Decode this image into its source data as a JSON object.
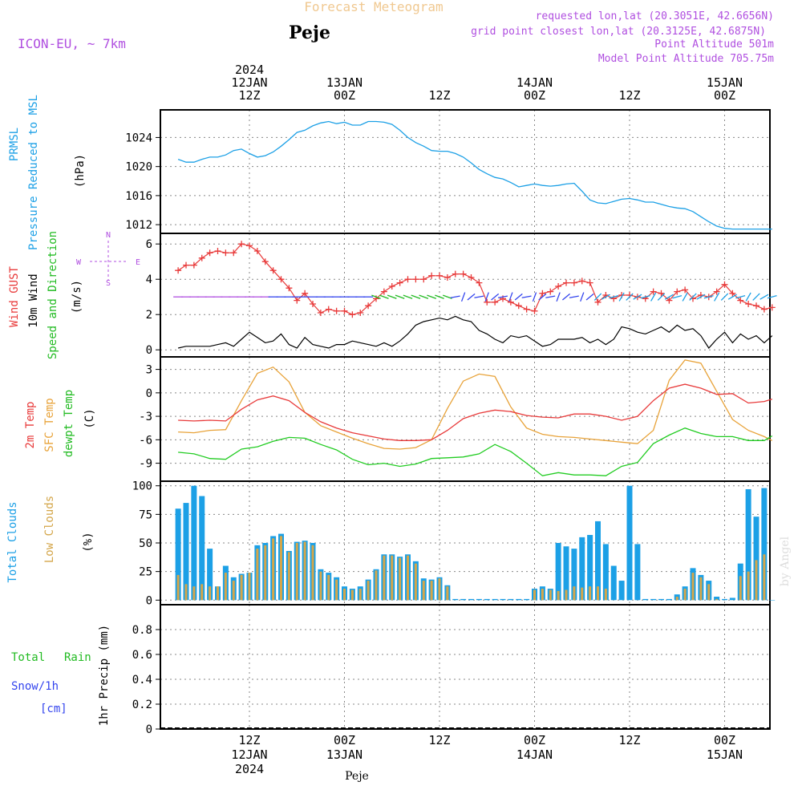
{
  "header": {
    "title": "Forecast Meteogram",
    "location": "Peje",
    "model": "ICON-EU, ~ 7km",
    "requested": "requested lon,lat (20.3051E, 42.6656N)",
    "grid_point": "grid point closest lon,lat (20.3125E, 42.6875N)",
    "point_alt": "Point Altitude 501m",
    "model_alt": "Model Point Altitude 705.75m",
    "footer_location": "Peje",
    "watermark": "by Angel"
  },
  "colors": {
    "pressure": "#1ca0e6",
    "gust": "#e83a3a",
    "wind": "#000000",
    "wind_label": "#22bb22",
    "temp2m": "#e83a3a",
    "sfc_temp": "#e8a33a",
    "dewpt": "#22cc22",
    "total_clouds": "#1ca0e6",
    "low_clouds": "#d4a64a",
    "purple": "#b04fe0",
    "rain": "#22bb22",
    "snow": "#3344ee"
  },
  "time_axis": {
    "top_ticks": [
      {
        "line1": "2024",
        "line2": "12JAN",
        "line3": "12Z"
      },
      {
        "line1": "",
        "line2": "13JAN",
        "line3": "00Z"
      },
      {
        "line1": "",
        "line2": "",
        "line3": "12Z"
      },
      {
        "line1": "",
        "line2": "14JAN",
        "line3": "00Z"
      },
      {
        "line1": "",
        "line2": "",
        "line3": "12Z"
      },
      {
        "line1": "",
        "line2": "15JAN",
        "line3": "00Z"
      }
    ],
    "bottom_ticks": [
      {
        "line1": "12Z",
        "line2": "12JAN",
        "line3": "2024"
      },
      {
        "line1": "00Z",
        "line2": "13JAN",
        "line3": ""
      },
      {
        "line1": "12Z",
        "line2": "",
        "line3": ""
      },
      {
        "line1": "00Z",
        "line2": "14JAN",
        "line3": ""
      },
      {
        "line1": "12Z",
        "line2": "",
        "line3": ""
      },
      {
        "line1": "00Z",
        "line2": "15JAN",
        "line3": ""
      }
    ]
  },
  "panels": {
    "pressure": {
      "label1": "PRMSL",
      "label2": "Pressure Reduced to MSL",
      "unit": "(hPa)"
    },
    "wind": {
      "label1": "Wind GUST",
      "label2": "10m Wind",
      "label3": "Speed and Direction",
      "unit": "(m/s)",
      "compass_n": "N",
      "compass_s": "S",
      "compass_w": "W",
      "compass_e": "E"
    },
    "temp": {
      "label1": "2m Temp",
      "label2": "SFC Temp",
      "label3": "dewpt Temp",
      "unit": "(C)"
    },
    "clouds": {
      "label1": "Total Clouds",
      "label2": "Low Clouds",
      "unit": "(%)"
    },
    "precip": {
      "label1": "Total",
      "label1b": "Rain",
      "label2": "Snow/1h",
      "label3": "[cm]",
      "unit": "1hr Precip (mm)"
    }
  },
  "chart_data": [
    {
      "type": "line",
      "title": "PRMSL Pressure Reduced to MSL",
      "ylabel": "(hPa)",
      "x_hours_from_12JAN_00Z": [
        3,
        78
      ],
      "ylim": [
        1010.8,
        1027.8
      ],
      "yticks": [
        1012,
        1016,
        1020,
        1024
      ],
      "series": [
        {
          "name": "PRMSL",
          "x": [
            3,
            4,
            5,
            6,
            7,
            8,
            9,
            10,
            11,
            12,
            13,
            14,
            15,
            16,
            17,
            18,
            19,
            20,
            21,
            22,
            23,
            24,
            25,
            26,
            27,
            28,
            29,
            30,
            31,
            32,
            33,
            34,
            35,
            36,
            37,
            38,
            39,
            40,
            41,
            42,
            43,
            44,
            45,
            46,
            47,
            48,
            49,
            50,
            51,
            52,
            53,
            54,
            55,
            56,
            57,
            58,
            59,
            60,
            61,
            62,
            63,
            64,
            65,
            66,
            67,
            68,
            69,
            70,
            71,
            72,
            73,
            74,
            75,
            76,
            77,
            78
          ],
          "values": [
            1021.0,
            1020.6,
            1020.6,
            1021.0,
            1021.3,
            1021.3,
            1021.6,
            1022.2,
            1022.4,
            1021.8,
            1021.3,
            1021.5,
            1022.0,
            1022.8,
            1023.7,
            1024.7,
            1025.0,
            1025.6,
            1026.0,
            1026.2,
            1025.9,
            1026.1,
            1025.7,
            1025.7,
            1026.2,
            1026.2,
            1026.1,
            1025.8,
            1025.0,
            1024.0,
            1023.3,
            1022.8,
            1022.2,
            1022.1,
            1022.1,
            1021.8,
            1021.3,
            1020.5,
            1019.6,
            1019.0,
            1018.5,
            1018.3,
            1017.8,
            1017.2,
            1017.4,
            1017.6,
            1017.4,
            1017.3,
            1017.4,
            1017.6,
            1017.7,
            1016.6,
            1015.4,
            1015.0,
            1014.9,
            1015.2,
            1015.5,
            1015.6,
            1015.4,
            1015.1,
            1015.1,
            1014.8,
            1014.5,
            1014.3,
            1014.2,
            1013.8,
            1013.1,
            1012.4,
            1011.8,
            1011.5,
            1011.4,
            1011.4,
            1011.4,
            1011.4,
            1011.4,
            1011.4
          ]
        }
      ]
    },
    {
      "type": "line",
      "title": "Wind GUST / 10m Wind Speed and Direction",
      "ylabel": "(m/s)",
      "ylim": [
        -0.4,
        6.6
      ],
      "yticks": [
        0,
        2,
        4,
        6
      ],
      "series": [
        {
          "name": "Wind GUST",
          "x": [
            3,
            4,
            5,
            6,
            7,
            8,
            9,
            10,
            11,
            12,
            13,
            14,
            15,
            16,
            17,
            18,
            19,
            20,
            21,
            22,
            23,
            24,
            25,
            26,
            27,
            28,
            29,
            30,
            31,
            32,
            33,
            34,
            35,
            36,
            37,
            38,
            39,
            40,
            41,
            42,
            43,
            44,
            45,
            46,
            47,
            48,
            49,
            50,
            51,
            52,
            53,
            54,
            55,
            56,
            57,
            58,
            59,
            60,
            61,
            62,
            63,
            64,
            65,
            66,
            67,
            68,
            69,
            70,
            71,
            72,
            73,
            74,
            75,
            76,
            77,
            78
          ],
          "values": [
            4.5,
            4.8,
            4.8,
            5.2,
            5.5,
            5.6,
            5.5,
            5.5,
            6.0,
            5.9,
            5.6,
            5.0,
            4.5,
            4.0,
            3.5,
            2.8,
            3.2,
            2.6,
            2.1,
            2.3,
            2.2,
            2.2,
            2.0,
            2.1,
            2.5,
            2.9,
            3.3,
            3.6,
            3.8,
            4.0,
            4.0,
            4.0,
            4.2,
            4.2,
            4.1,
            4.3,
            4.3,
            4.1,
            3.8,
            2.7,
            2.7,
            2.9,
            2.7,
            2.5,
            2.3,
            2.2,
            3.2,
            3.3,
            3.6,
            3.8,
            3.8,
            3.9,
            3.8,
            2.7,
            3.1,
            2.9,
            3.1,
            3.1,
            3.0,
            2.9,
            3.3,
            3.2,
            2.8,
            3.3,
            3.4,
            2.9,
            3.1,
            3.0,
            3.3,
            3.7,
            3.2,
            2.8,
            2.6,
            2.5,
            2.3,
            2.4
          ]
        },
        {
          "name": "10m Wind",
          "x": [
            3,
            4,
            5,
            6,
            7,
            8,
            9,
            10,
            11,
            12,
            13,
            14,
            15,
            16,
            17,
            18,
            19,
            20,
            21,
            22,
            23,
            24,
            25,
            26,
            27,
            28,
            29,
            30,
            31,
            32,
            33,
            34,
            35,
            36,
            37,
            38,
            39,
            40,
            41,
            42,
            43,
            44,
            45,
            46,
            47,
            48,
            49,
            50,
            51,
            52,
            53,
            54,
            55,
            56,
            57,
            58,
            59,
            60,
            61,
            62,
            63,
            64,
            65,
            66,
            67,
            68,
            69,
            70,
            71,
            72,
            73,
            74,
            75,
            76,
            77,
            78
          ],
          "values": [
            0.1,
            0.2,
            0.2,
            0.2,
            0.2,
            0.3,
            0.4,
            0.2,
            0.6,
            1.0,
            0.7,
            0.4,
            0.5,
            0.9,
            0.3,
            0.1,
            0.7,
            0.3,
            0.2,
            0.1,
            0.3,
            0.3,
            0.5,
            0.4,
            0.3,
            0.2,
            0.4,
            0.2,
            0.5,
            0.9,
            1.4,
            1.6,
            1.7,
            1.8,
            1.7,
            1.9,
            1.7,
            1.6,
            1.1,
            0.9,
            0.6,
            0.4,
            0.8,
            0.7,
            0.8,
            0.5,
            0.2,
            0.3,
            0.6,
            0.6,
            0.6,
            0.7,
            0.4,
            0.6,
            0.3,
            0.6,
            1.3,
            1.2,
            1.0,
            0.9,
            1.1,
            1.3,
            1.0,
            1.4,
            1.1,
            1.2,
            0.8,
            0.1,
            0.6,
            1.0,
            0.4,
            0.9,
            0.6,
            0.8,
            0.4,
            0.8
          ]
        }
      ]
    },
    {
      "type": "line",
      "title": "2m Temp / SFC Temp / dewpt Temp",
      "ylabel": "(C)",
      "ylim": [
        -11.3,
        4.6
      ],
      "yticks": [
        -9,
        -6,
        -3,
        0,
        3
      ],
      "series": [
        {
          "name": "2m Temp",
          "x": [
            3,
            5,
            7,
            9,
            11,
            13,
            15,
            17,
            19,
            21,
            23,
            25,
            27,
            29,
            31,
            33,
            35,
            37,
            39,
            41,
            43,
            45,
            47,
            49,
            51,
            53,
            55,
            57,
            59,
            61,
            63,
            65,
            67,
            69,
            71,
            73,
            75,
            77,
            78
          ],
          "values": [
            -3.5,
            -3.6,
            -3.5,
            -3.6,
            -2.1,
            -0.9,
            -0.4,
            -1.0,
            -2.5,
            -3.7,
            -4.5,
            -5.1,
            -5.5,
            -5.9,
            -6.1,
            -6.1,
            -6.0,
            -4.8,
            -3.3,
            -2.6,
            -2.2,
            -2.4,
            -2.9,
            -3.1,
            -3.2,
            -2.7,
            -2.7,
            -3.0,
            -3.5,
            -3.0,
            -1.0,
            0.6,
            1.1,
            0.6,
            -0.2,
            -0.1,
            -1.3,
            -1.1,
            -0.8
          ]
        },
        {
          "name": "SFC Temp",
          "x": [
            3,
            5,
            7,
            9,
            11,
            13,
            15,
            17,
            19,
            21,
            23,
            25,
            27,
            29,
            31,
            33,
            35,
            37,
            39,
            41,
            43,
            45,
            47,
            49,
            51,
            53,
            55,
            57,
            59,
            61,
            63,
            65,
            67,
            69,
            71,
            73,
            75,
            77,
            78
          ],
          "values": [
            -5.0,
            -5.1,
            -4.8,
            -4.7,
            -1.0,
            2.5,
            3.3,
            1.4,
            -2.5,
            -4.2,
            -5.0,
            -5.8,
            -6.5,
            -7.1,
            -7.2,
            -7.0,
            -6.0,
            -2.0,
            1.5,
            2.4,
            2.1,
            -1.8,
            -4.5,
            -5.3,
            -5.6,
            -5.7,
            -5.9,
            -6.1,
            -6.3,
            -6.5,
            -4.8,
            1.6,
            4.2,
            3.8,
            0.2,
            -3.4,
            -4.8,
            -5.6,
            -6.1
          ]
        },
        {
          "name": "dewpt Temp",
          "x": [
            3,
            5,
            7,
            9,
            11,
            13,
            15,
            17,
            19,
            21,
            23,
            25,
            27,
            29,
            31,
            33,
            35,
            37,
            39,
            41,
            43,
            45,
            47,
            49,
            51,
            53,
            55,
            57,
            59,
            61,
            63,
            65,
            67,
            69,
            71,
            73,
            75,
            77,
            78
          ],
          "values": [
            -7.6,
            -7.8,
            -8.4,
            -8.5,
            -7.2,
            -6.9,
            -6.2,
            -5.7,
            -5.8,
            -6.6,
            -7.3,
            -8.5,
            -9.2,
            -9.0,
            -9.4,
            -9.1,
            -8.4,
            -8.3,
            -8.2,
            -7.8,
            -6.6,
            -7.5,
            -9.0,
            -10.6,
            -10.2,
            -10.5,
            -10.5,
            -10.6,
            -9.4,
            -8.9,
            -6.5,
            -5.4,
            -4.5,
            -5.2,
            -5.6,
            -5.6,
            -6.1,
            -6.1,
            -5.5
          ]
        }
      ]
    },
    {
      "type": "bar",
      "title": "Total Clouds / Low Clouds",
      "ylabel": "(%)",
      "ylim": [
        -4,
        104
      ],
      "yticks": [
        0,
        25,
        50,
        75,
        100
      ],
      "x": [
        3,
        4,
        5,
        6,
        7,
        8,
        9,
        10,
        11,
        12,
        13,
        14,
        15,
        16,
        17,
        18,
        19,
        20,
        21,
        22,
        23,
        24,
        25,
        26,
        27,
        28,
        29,
        30,
        31,
        32,
        33,
        34,
        35,
        36,
        37,
        38,
        39,
        40,
        41,
        42,
        43,
        44,
        45,
        46,
        47,
        48,
        49,
        50,
        51,
        52,
        53,
        54,
        55,
        56,
        57,
        58,
        59,
        60,
        61,
        62,
        63,
        64,
        65,
        66,
        67,
        68,
        69,
        70,
        71,
        72,
        73,
        74,
        75,
        76,
        77,
        78
      ],
      "series": [
        {
          "name": "Total Clouds",
          "values": [
            80,
            85,
            100,
            91,
            45,
            12,
            30,
            20,
            23,
            24,
            48,
            50,
            56,
            58,
            43,
            51,
            52,
            50,
            27,
            24,
            20,
            12,
            10,
            12,
            18,
            27,
            40,
            40,
            38,
            40,
            34,
            19,
            18,
            20,
            13,
            1,
            1,
            1,
            1,
            1,
            1,
            1,
            1,
            1,
            1,
            10,
            12,
            10,
            50,
            47,
            45,
            55,
            57,
            69,
            49,
            30,
            17,
            100,
            49,
            1,
            1,
            1,
            1,
            5,
            12,
            28,
            22,
            17,
            3,
            1,
            2,
            32,
            97,
            73,
            98,
            0
          ]
        },
        {
          "name": "Low Clouds",
          "values": [
            22,
            14,
            12,
            14,
            12,
            12,
            24,
            17,
            22,
            24,
            45,
            48,
            54,
            56,
            42,
            50,
            51,
            48,
            25,
            22,
            18,
            10,
            9,
            10,
            17,
            26,
            39,
            39,
            37,
            39,
            32,
            17,
            17,
            19,
            12,
            0,
            0,
            0,
            0,
            0,
            0,
            0,
            0,
            0,
            0,
            9,
            10,
            9,
            8,
            9,
            12,
            11,
            12,
            12,
            10,
            0,
            0,
            0,
            0,
            0,
            0,
            0,
            0,
            3,
            10,
            24,
            20,
            14,
            1,
            0,
            0,
            21,
            25,
            35,
            40,
            0
          ]
        }
      ]
    },
    {
      "type": "bar",
      "title": "1hr Precip",
      "ylabel": "1hr Precip (mm)",
      "ylim": [
        0,
        1.0
      ],
      "yticks": [
        0,
        0.2,
        0.4,
        0.6,
        0.8
      ],
      "series": [
        {
          "name": "Total Rain",
          "values": []
        },
        {
          "name": "Snow/1h [cm]",
          "values": []
        }
      ]
    }
  ]
}
